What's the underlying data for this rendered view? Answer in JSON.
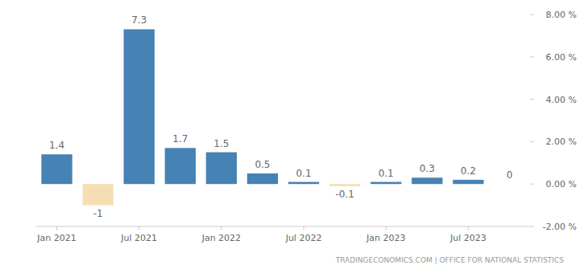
{
  "chart_data": {
    "type": "bar",
    "categories": [
      "Jan 2021",
      null,
      "Jul 2021",
      null,
      "Jan 2022",
      null,
      "Jul 2022",
      null,
      "Jan 2023",
      null,
      "Jul 2023",
      null
    ],
    "values": [
      1.4,
      -1,
      7.3,
      1.7,
      1.5,
      0.5,
      0.1,
      -0.1,
      0.1,
      0.3,
      0.2,
      0
    ],
    "colors": [
      "#4682b4",
      "#f5deb3",
      "#4682b4",
      "#4682b4",
      "#4682b4",
      "#4682b4",
      "#4682b4",
      "#f5deb3",
      "#4682b4",
      "#4682b4",
      "#4682b4",
      "#4682b4"
    ],
    "ylim": [
      -2,
      8
    ],
    "yticks": [
      {
        "value": -2,
        "label": "-2.00 %"
      },
      {
        "value": 0,
        "label": "0.00 %"
      },
      {
        "value": 2,
        "label": "2.00 %"
      },
      {
        "value": 4,
        "label": "4.00 %"
      },
      {
        "value": 6,
        "label": "6.00 %"
      },
      {
        "value": 8,
        "label": "8.00 %"
      }
    ],
    "grid": false,
    "data_labels": true,
    "source": "TRADINGECONOMICS.COM | OFFICE FOR NATIONAL STATISTICS"
  }
}
